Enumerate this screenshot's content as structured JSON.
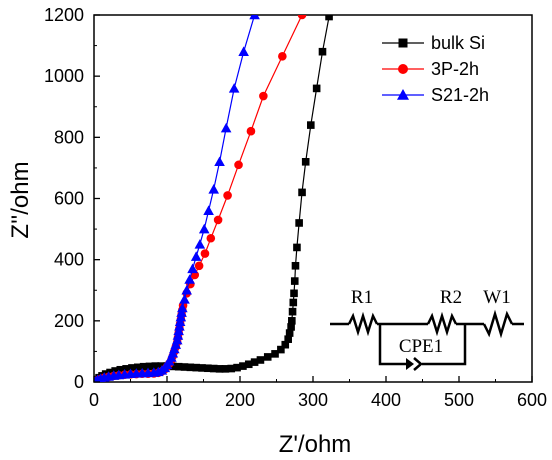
{
  "chart_data": {
    "type": "scatter",
    "title": "",
    "xlabel": "Z'/ohm",
    "ylabel": "Z''/ohm",
    "xlim": [
      0,
      600
    ],
    "ylim": [
      0,
      1200
    ],
    "x_ticks": [
      0,
      100,
      200,
      300,
      400,
      500,
      600
    ],
    "y_ticks": [
      0,
      200,
      400,
      600,
      800,
      1000,
      1200
    ],
    "legend_position": "top-right",
    "grid": false,
    "series": [
      {
        "name": "bulk Si",
        "color": "#000000",
        "marker": "square",
        "points": [
          [
            2,
            2
          ],
          [
            4,
            8
          ],
          [
            7,
            14
          ],
          [
            11,
            20
          ],
          [
            16,
            26
          ],
          [
            22,
            31
          ],
          [
            29,
            36
          ],
          [
            36,
            40
          ],
          [
            44,
            43
          ],
          [
            52,
            46
          ],
          [
            60,
            48
          ],
          [
            68,
            50
          ],
          [
            76,
            51
          ],
          [
            84,
            52
          ],
          [
            92,
            52
          ],
          [
            100,
            52
          ],
          [
            108,
            51
          ],
          [
            116,
            50
          ],
          [
            124,
            49
          ],
          [
            132,
            48
          ],
          [
            140,
            47
          ],
          [
            148,
            46
          ],
          [
            156,
            45
          ],
          [
            164,
            44
          ],
          [
            172,
            43
          ],
          [
            180,
            43
          ],
          [
            188,
            44
          ],
          [
            196,
            47
          ],
          [
            204,
            52
          ],
          [
            212,
            58
          ],
          [
            220,
            65
          ],
          [
            228,
            72
          ],
          [
            238,
            82
          ],
          [
            248,
            92
          ],
          [
            256,
            106
          ],
          [
            262,
            122
          ],
          [
            266,
            140
          ],
          [
            268,
            160
          ],
          [
            270,
            180
          ],
          [
            271,
            200
          ],
          [
            272,
            230
          ],
          [
            273,
            260
          ],
          [
            274,
            290
          ],
          [
            275,
            330
          ],
          [
            276,
            380
          ],
          [
            278,
            440
          ],
          [
            281,
            520
          ],
          [
            285,
            620
          ],
          [
            290,
            720
          ],
          [
            297,
            840
          ],
          [
            305,
            960
          ],
          [
            313,
            1080
          ],
          [
            322,
            1195
          ]
        ]
      },
      {
        "name": "3P-2h",
        "color": "#ff0000",
        "marker": "circle",
        "points": [
          [
            2,
            2
          ],
          [
            5,
            6
          ],
          [
            9,
            10
          ],
          [
            14,
            14
          ],
          [
            20,
            17
          ],
          [
            27,
            20
          ],
          [
            34,
            22
          ],
          [
            42,
            24
          ],
          [
            50,
            25
          ],
          [
            58,
            26
          ],
          [
            66,
            27
          ],
          [
            74,
            27
          ],
          [
            82,
            28
          ],
          [
            88,
            30
          ],
          [
            93,
            35
          ],
          [
            97,
            42
          ],
          [
            100,
            50
          ],
          [
            103,
            60
          ],
          [
            106,
            72
          ],
          [
            108,
            85
          ],
          [
            110,
            100
          ],
          [
            112,
            115
          ],
          [
            114,
            130
          ],
          [
            115,
            145
          ],
          [
            116,
            160
          ],
          [
            117,
            175
          ],
          [
            118,
            190
          ],
          [
            119,
            205
          ],
          [
            120,
            220
          ],
          [
            121,
            235
          ],
          [
            122,
            250
          ],
          [
            127,
            290
          ],
          [
            132,
            320
          ],
          [
            138,
            350
          ],
          [
            144,
            380
          ],
          [
            152,
            420
          ],
          [
            160,
            470
          ],
          [
            170,
            530
          ],
          [
            183,
            610
          ],
          [
            198,
            710
          ],
          [
            215,
            820
          ],
          [
            232,
            935
          ],
          [
            258,
            1065
          ],
          [
            285,
            1200
          ]
        ]
      },
      {
        "name": "S21-2h",
        "color": "#0000ff",
        "marker": "triangle",
        "points": [
          [
            2,
            2
          ],
          [
            5,
            7
          ],
          [
            9,
            11
          ],
          [
            14,
            15
          ],
          [
            20,
            18
          ],
          [
            27,
            21
          ],
          [
            34,
            23
          ],
          [
            42,
            25
          ],
          [
            50,
            27
          ],
          [
            58,
            28
          ],
          [
            66,
            29
          ],
          [
            74,
            30
          ],
          [
            82,
            31
          ],
          [
            88,
            33
          ],
          [
            93,
            38
          ],
          [
            97,
            46
          ],
          [
            100,
            56
          ],
          [
            103,
            68
          ],
          [
            106,
            80
          ],
          [
            108,
            94
          ],
          [
            110,
            108
          ],
          [
            112,
            122
          ],
          [
            114,
            137
          ],
          [
            115,
            152
          ],
          [
            116,
            167
          ],
          [
            117,
            182
          ],
          [
            118,
            197
          ],
          [
            119,
            212
          ],
          [
            120,
            227
          ],
          [
            121,
            242
          ],
          [
            124,
            270
          ],
          [
            127,
            300
          ],
          [
            131,
            335
          ],
          [
            135,
            370
          ],
          [
            140,
            410
          ],
          [
            145,
            450
          ],
          [
            151,
            500
          ],
          [
            157,
            560
          ],
          [
            164,
            630
          ],
          [
            172,
            720
          ],
          [
            181,
            830
          ],
          [
            192,
            960
          ],
          [
            205,
            1080
          ],
          [
            220,
            1200
          ]
        ]
      }
    ],
    "inset": {
      "labels": [
        "R1",
        "R2",
        "W1",
        "CPE1"
      ]
    }
  }
}
